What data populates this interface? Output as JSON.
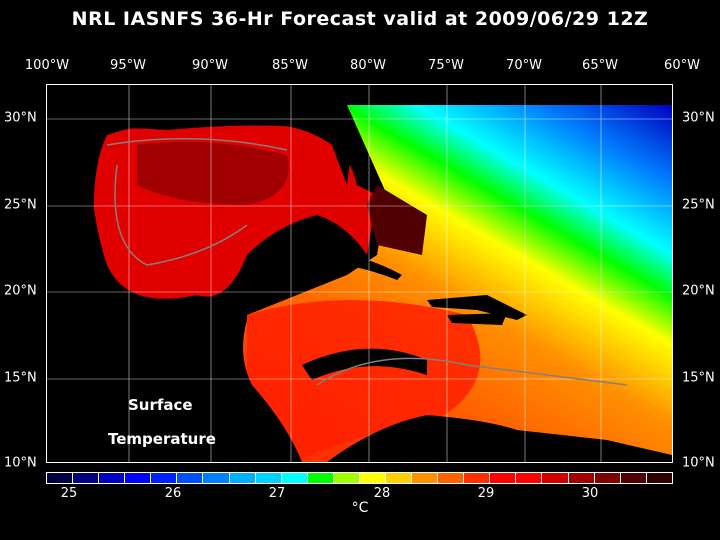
{
  "title": "NRL IASNFS  36-Hr Forecast valid at 2009/06/29 12Z",
  "lon_labels": [
    "100°W",
    "95°W",
    "90°W",
    "85°W",
    "80°W",
    "75°W",
    "70°W",
    "65°W",
    "60°W"
  ],
  "lat_labels": [
    "30°N",
    "25°N",
    "20°N",
    "15°N",
    "10°N"
  ],
  "map_labels": {
    "line1": "Surface",
    "line2": "Temperature"
  },
  "colorbar": {
    "ticks": [
      "25",
      "26",
      "27",
      "28",
      "29",
      "30"
    ],
    "unit": "°C",
    "colors": [
      "#000040",
      "#000080",
      "#0000c0",
      "#0000ff",
      "#0020ff",
      "#0050ff",
      "#0080ff",
      "#00b0ff",
      "#00d0ff",
      "#00ffff",
      "#00ff00",
      "#a0ff00",
      "#ffff00",
      "#ffd000",
      "#ff9000",
      "#ff6000",
      "#ff3000",
      "#ff0000",
      "#ff0000",
      "#d00000",
      "#a00000",
      "#800000",
      "#500000",
      "#300000"
    ]
  }
}
